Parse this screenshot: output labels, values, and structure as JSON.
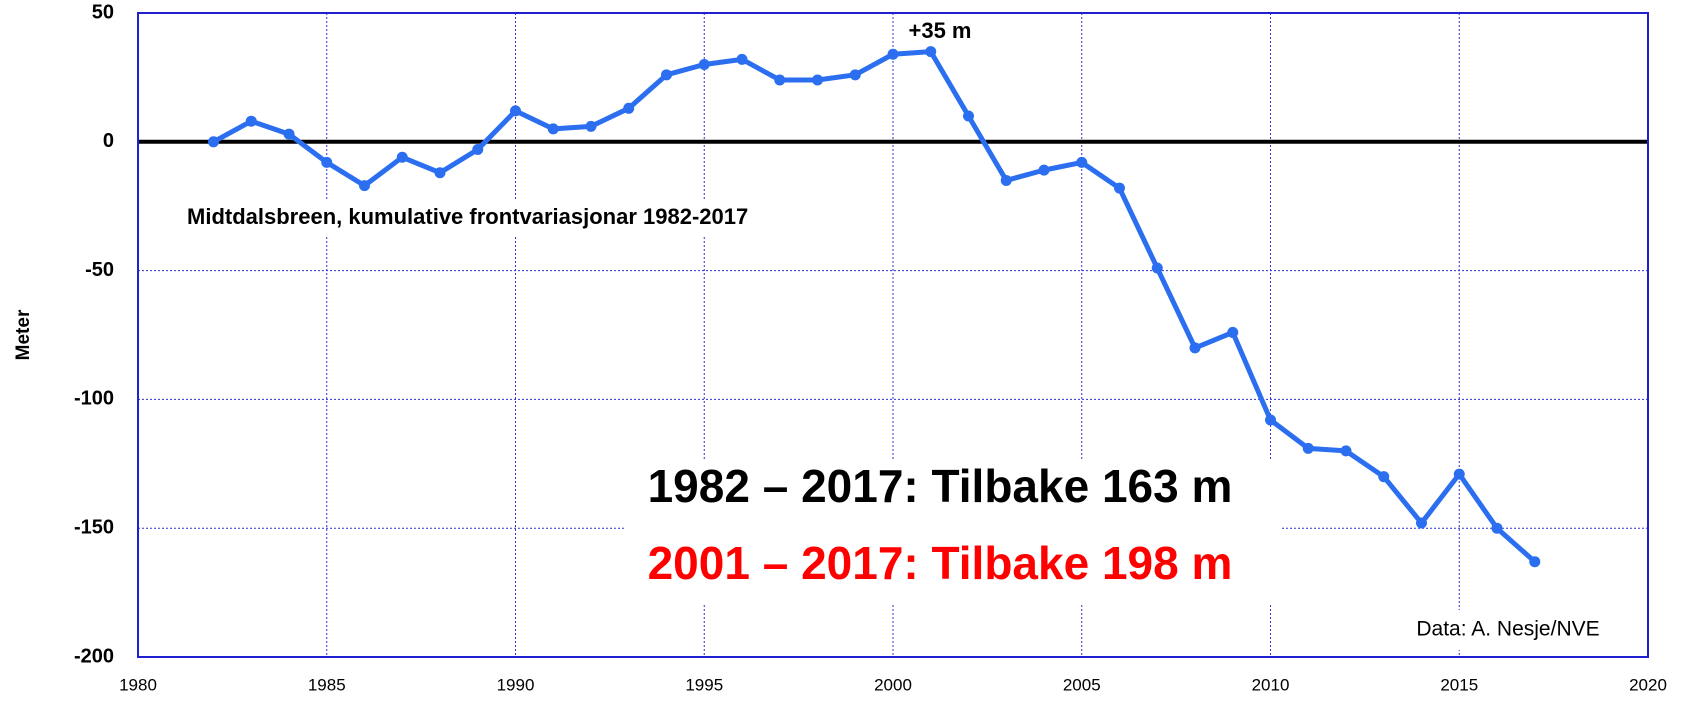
{
  "chart_data": {
    "type": "line",
    "y_label": "Meter",
    "x": [
      1982,
      1983,
      1984,
      1985,
      1986,
      1987,
      1988,
      1989,
      1990,
      1991,
      1992,
      1993,
      1994,
      1995,
      1996,
      1997,
      1998,
      1999,
      2000,
      2001,
      2002,
      2003,
      2004,
      2005,
      2006,
      2007,
      2008,
      2009,
      2010,
      2011,
      2012,
      2013,
      2014,
      2015,
      2016,
      2017
    ],
    "values": [
      0,
      8,
      3,
      -8,
      -17,
      -6,
      -12,
      -3,
      12,
      5,
      6,
      13,
      26,
      30,
      32,
      24,
      24,
      26,
      34,
      35,
      10,
      -15,
      -11,
      -8,
      -18,
      -49,
      -80,
      -74,
      -108,
      -119,
      -120,
      -130,
      -148,
      -129,
      -150,
      -163
    ],
    "color": "#2b6ff0",
    "xlim": [
      1980,
      2020
    ],
    "xticks": [
      1980,
      1985,
      1990,
      1995,
      2000,
      2005,
      2010,
      2015,
      2020
    ],
    "ylim": [
      -200,
      50
    ],
    "yticks": [
      -200,
      -150,
      -100,
      -50,
      0,
      50
    ],
    "grid": true,
    "annotations": [
      {
        "text": "Midtdalsbreen, kumulative frontvariasjonar 1982-2017",
        "color": "#000000"
      },
      {
        "text": "+35 m",
        "color": "#000000"
      },
      {
        "text": "1982 – 2017: Tilbake 163 m",
        "color": "#000000"
      },
      {
        "text": "2001 – 2017: Tilbake 198 m",
        "color": "#ff0000"
      },
      {
        "text": "Data: A. Nesje/NVE",
        "color": "#000000"
      }
    ]
  }
}
